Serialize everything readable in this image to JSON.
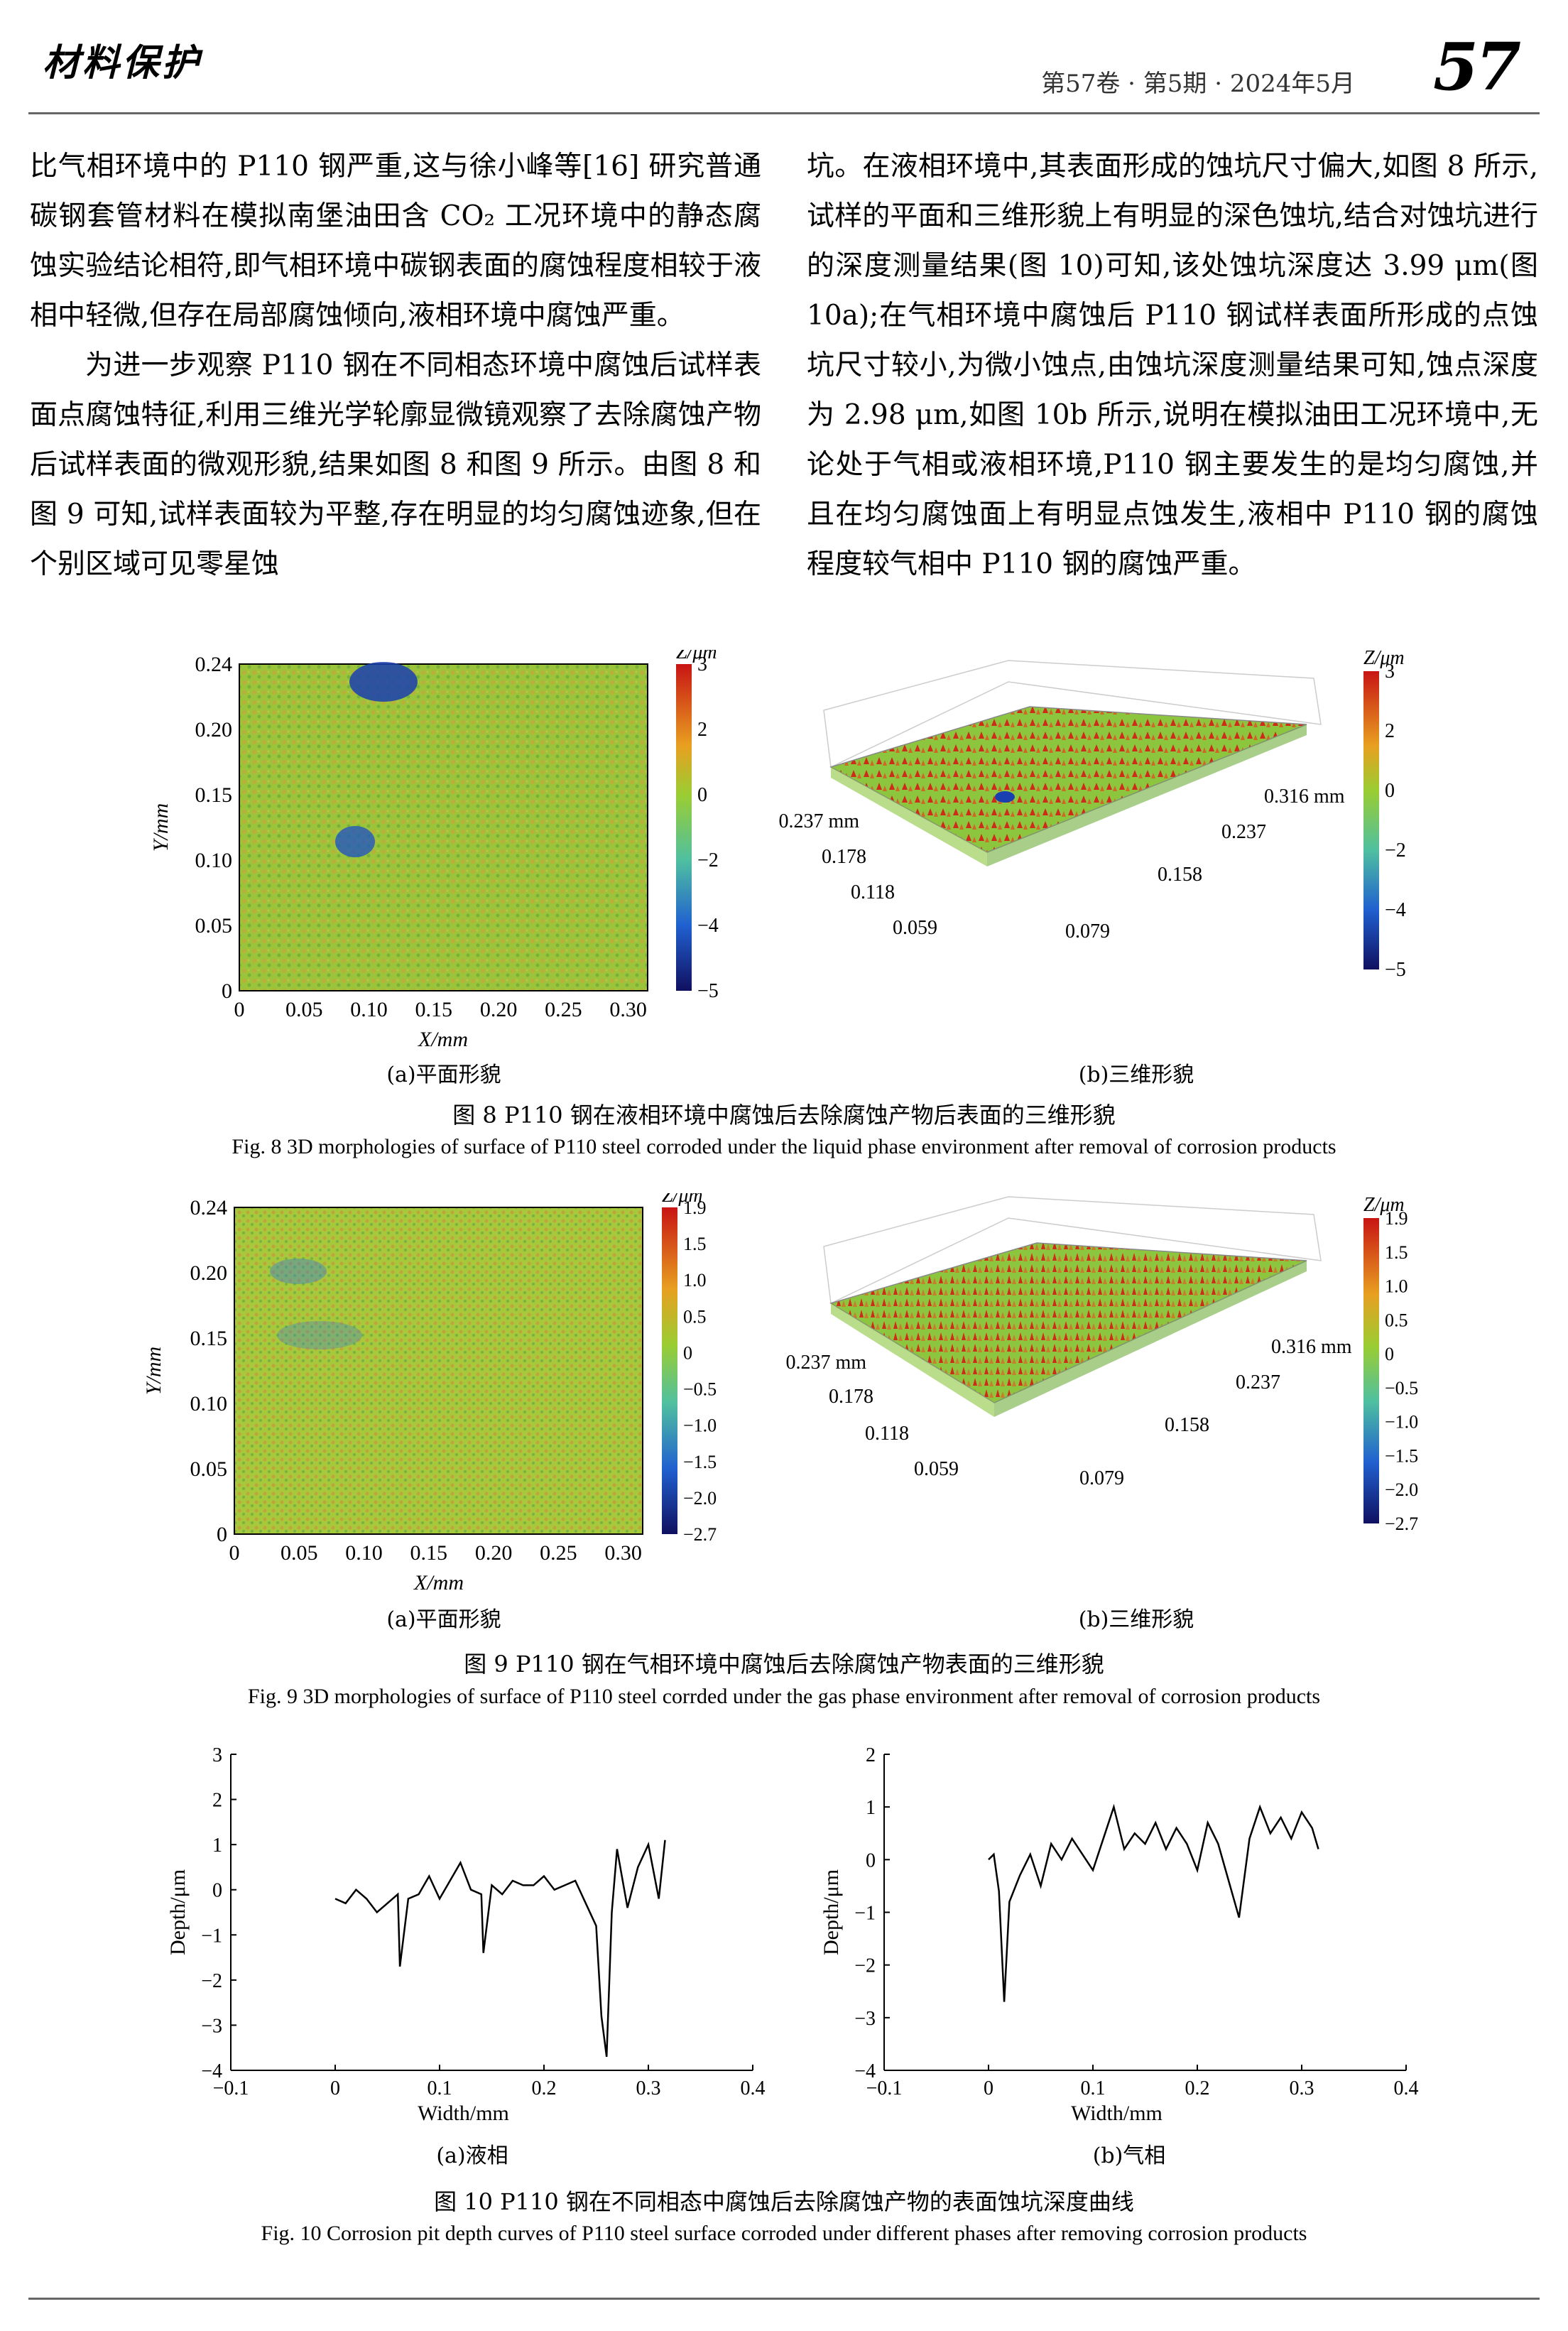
{
  "header": {
    "journal": "材料保护",
    "issue": "第57卷 · 第5期 · 2024年5月",
    "page": "57"
  },
  "body": {
    "left_p1": "比气相环境中的 P110 钢严重,这与徐小峰等[16] 研究普通碳钢套管材料在模拟南堡油田含 CO₂ 工况环境中的静态腐蚀实验结论相符,即气相环境中碳钢表面的腐蚀程度相较于液相中轻微,但存在局部腐蚀倾向,液相环境中腐蚀严重。",
    "left_p2": "为进一步观察 P110 钢在不同相态环境中腐蚀后试样表面点腐蚀特征,利用三维光学轮廓显微镜观察了去除腐蚀产物后试样表面的微观形貌,结果如图 8 和图 9 所示。由图 8 和图 9 可知,试样表面较为平整,存在明显的均匀腐蚀迹象,但在个别区域可见零星蚀",
    "right_p1": "坑。在液相环境中,其表面形成的蚀坑尺寸偏大,如图 8 所示,试样的平面和三维形貌上有明显的深色蚀坑,结合对蚀坑进行的深度测量结果(图 10)可知,该处蚀坑深度达 3.99 μm(图 10a);在气相环境中腐蚀后 P110 钢试样表面所形成的点蚀坑尺寸较小,为微小蚀点,由蚀坑深度测量结果可知,蚀点深度为 2.98 μm,如图 10b 所示,说明在模拟油田工况环境中,无论处于气相或液相环境,P110 钢主要发生的是均匀腐蚀,并且在均匀腐蚀面上有明显点蚀发生,液相中 P110 钢的腐蚀程度较气相中 P110 钢的腐蚀严重。"
  },
  "fig8": {
    "sub_a": "(a)平面形貌",
    "sub_b": "(b)三维形貌",
    "caption_cn": "图 8   P110 钢在液相环境中腐蚀后去除腐蚀产物后表面的三维形貌",
    "caption_en": "Fig. 8    3D morphologies of surface of P110 steel corroded under the liquid phase environment after removal of corrosion products",
    "a_yticks": [
      "0",
      "0.05",
      "0.10",
      "0.15",
      "0.20",
      "0.24"
    ],
    "a_xticks": [
      "0",
      "0.05",
      "0.10",
      "0.15",
      "0.20",
      "0.25",
      "0.30"
    ],
    "a_xlabel": "X/mm",
    "a_ylabel": "Y/mm",
    "zlabel": "Z/μm",
    "colorbar_ticks": [
      "3",
      "2",
      "0",
      "−2",
      "−4",
      "−5"
    ],
    "b_left_ticks": [
      "0.237 mm",
      "0.178",
      "0.118",
      "0.059"
    ],
    "b_right_ticks": [
      "0.316 mm",
      "0.237",
      "0.158",
      "0.079"
    ]
  },
  "fig9": {
    "sub_a": "(a)平面形貌",
    "sub_b": "(b)三维形貌",
    "caption_cn": "图 9   P110 钢在气相环境中腐蚀后去除腐蚀产物表面的三维形貌",
    "caption_en": "Fig. 9    3D morphologies of surface of P110 steel corrded under the gas phase environment after removal of corrosion products",
    "a_yticks": [
      "0",
      "0.05",
      "0.10",
      "0.15",
      "0.20",
      "0.24"
    ],
    "a_xticks": [
      "0",
      "0.05",
      "0.10",
      "0.15",
      "0.20",
      "0.25",
      "0.30"
    ],
    "a_xlabel": "X/mm",
    "a_ylabel": "Y/mm",
    "zlabel": "Z/μm",
    "colorbar_ticks": [
      "1.9",
      "1.5",
      "1.0",
      "0.5",
      "0",
      "−0.5",
      "−1.0",
      "−1.5",
      "−2.0",
      "−2.7"
    ],
    "b_left_ticks": [
      "0.237 mm",
      "0.178",
      "0.118",
      "0.059"
    ],
    "b_right_ticks": [
      "0.316 mm",
      "0.237",
      "0.158",
      "0.079"
    ]
  },
  "fig10": {
    "sub_a": "(a)液相",
    "sub_b": "(b)气相",
    "caption_cn": "图 10   P110 钢在不同相态中腐蚀后去除腐蚀产物的表面蚀坑深度曲线",
    "caption_en": "Fig. 10    Corrosion pit depth curves of P110 steel surface corroded under different phases after removing corrosion products"
  },
  "chart_data": [
    {
      "type": "line",
      "xlabel": "Width/mm",
      "ylabel": "Depth/μm",
      "xlim": [
        -0.1,
        0.4
      ],
      "ylim": [
        -4,
        3
      ],
      "xticks": [
        "−0.1",
        "0",
        "0.1",
        "0.2",
        "0.3",
        "0.4"
      ],
      "yticks": [
        "3",
        "2",
        "1",
        "0",
        "−1",
        "−2",
        "−3",
        "−4"
      ],
      "x": [
        0.0,
        0.01,
        0.02,
        0.03,
        0.04,
        0.05,
        0.06,
        0.062,
        0.07,
        0.08,
        0.09,
        0.1,
        0.11,
        0.12,
        0.13,
        0.14,
        0.142,
        0.15,
        0.16,
        0.17,
        0.18,
        0.19,
        0.2,
        0.21,
        0.22,
        0.23,
        0.24,
        0.25,
        0.255,
        0.26,
        0.265,
        0.27,
        0.28,
        0.29,
        0.3,
        0.31,
        0.316
      ],
      "y": [
        -0.2,
        -0.3,
        0.0,
        -0.2,
        -0.5,
        -0.3,
        -0.1,
        -1.7,
        -0.2,
        -0.1,
        0.3,
        -0.2,
        0.2,
        0.6,
        0.0,
        -0.1,
        -1.4,
        0.1,
        -0.1,
        0.2,
        0.1,
        0.1,
        0.3,
        0.0,
        0.1,
        0.2,
        -0.3,
        -0.8,
        -2.8,
        -3.7,
        -0.5,
        0.9,
        -0.4,
        0.5,
        1.0,
        -0.2,
        1.1
      ]
    },
    {
      "type": "line",
      "xlabel": "Width/mm",
      "ylabel": "Depth/μm",
      "xlim": [
        -0.1,
        0.4
      ],
      "ylim": [
        -4,
        2
      ],
      "xticks": [
        "−0.1",
        "0",
        "0.1",
        "0.2",
        "0.3",
        "0.4"
      ],
      "yticks": [
        "2",
        "1",
        "0",
        "−1",
        "−2",
        "−3",
        "−4"
      ],
      "x": [
        0.0,
        0.005,
        0.01,
        0.015,
        0.02,
        0.03,
        0.04,
        0.05,
        0.06,
        0.07,
        0.08,
        0.09,
        0.1,
        0.11,
        0.12,
        0.13,
        0.14,
        0.15,
        0.16,
        0.17,
        0.18,
        0.19,
        0.2,
        0.21,
        0.22,
        0.23,
        0.24,
        0.25,
        0.26,
        0.27,
        0.28,
        0.29,
        0.3,
        0.31,
        0.316
      ],
      "y": [
        0.0,
        0.1,
        -0.6,
        -2.7,
        -0.8,
        -0.3,
        0.1,
        -0.5,
        0.3,
        0.0,
        0.4,
        0.1,
        -0.2,
        0.4,
        1.0,
        0.2,
        0.5,
        0.3,
        0.7,
        0.2,
        0.6,
        0.3,
        -0.2,
        0.7,
        0.3,
        -0.4,
        -1.1,
        0.4,
        1.0,
        0.5,
        0.8,
        0.4,
        0.9,
        0.6,
        0.2
      ]
    }
  ]
}
